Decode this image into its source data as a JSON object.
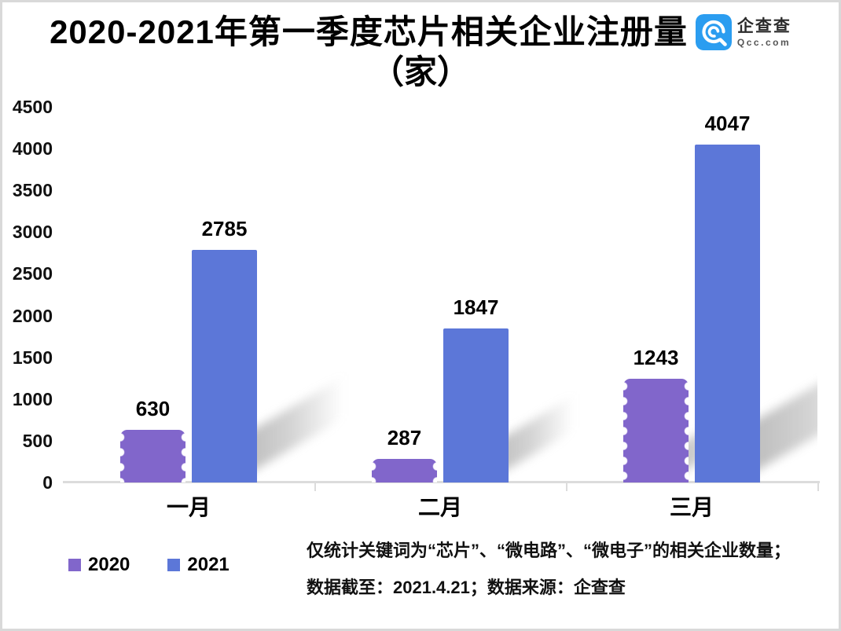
{
  "title": {
    "line1": "2020-2021年第一季度芯片相关企业注册量",
    "line2": "（家）"
  },
  "logo": {
    "name": "企查查",
    "domain": "Qcc.com",
    "badge_color": "#2b9df0"
  },
  "chart_data": {
    "type": "bar",
    "title": "2020-2021年第一季度芯片相关企业注册量（家）",
    "categories": [
      "一月",
      "二月",
      "三月"
    ],
    "series": [
      {
        "name": "2020",
        "color": "#8166cb",
        "style": "scalloped",
        "values": [
          630,
          287,
          1243
        ]
      },
      {
        "name": "2021",
        "color": "#5c77d8",
        "style": "plain",
        "values": [
          2785,
          1847,
          4047
        ]
      }
    ],
    "ylim": [
      0,
      4500
    ],
    "ytick_step": 500,
    "xlabel": "",
    "ylabel": "",
    "grid": false,
    "value_labels": true,
    "legend_position": "bottom-left"
  },
  "footnote": {
    "line1": "仅统计关键词为“芯片”、“微电路”、“微电子”的相关企业数量；",
    "line2": "数据截至：2021.4.21；数据来源：企查查"
  }
}
